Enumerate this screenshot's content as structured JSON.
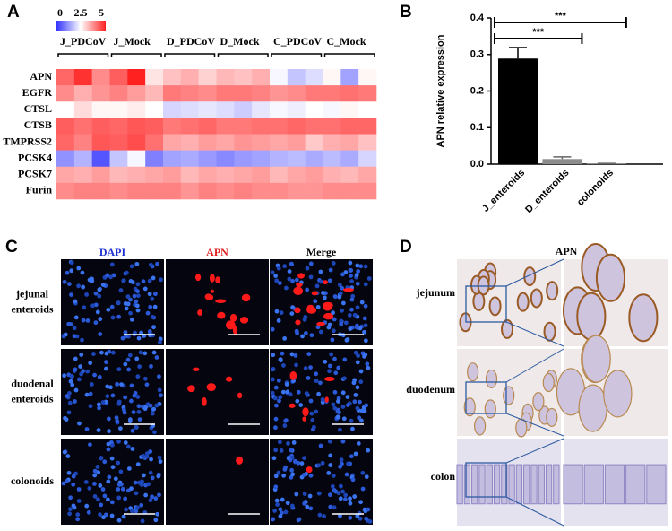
{
  "chart_data": [
    {
      "type": "heatmap",
      "panel": "A",
      "groups": [
        "J_PDCoV",
        "J_Mock",
        "D_PDCoV",
        "D_Mock",
        "C_PDCoV",
        "C_Mock"
      ],
      "rows": [
        "APN",
        "EGFR",
        "CTSL",
        "CTSB",
        "TMPRSS2",
        "PCSK4",
        "PCSK7",
        "Furin"
      ],
      "values": [
        [
          4.2,
          4.8,
          3.8,
          4.3,
          5.0,
          2.8,
          3.2,
          3.4,
          3.0,
          3.3,
          3.2,
          3.4,
          2.4,
          1.8,
          2.1,
          2.6,
          1.4,
          2.6
        ],
        [
          3.8,
          3.4,
          3.7,
          3.9,
          3.6,
          3.3,
          4.0,
          3.9,
          3.8,
          4.0,
          4.0,
          3.9,
          3.7,
          3.8,
          4.0,
          4.0,
          4.1,
          4.0
        ],
        [
          2.5,
          2.9,
          2.6,
          2.6,
          2.7,
          2.5,
          2.0,
          2.1,
          2.2,
          2.1,
          1.9,
          2.2,
          2.4,
          2.3,
          2.5,
          2.4,
          2.6,
          2.5
        ],
        [
          4.3,
          4.1,
          4.3,
          4.2,
          4.4,
          4.3,
          4.0,
          4.1,
          4.2,
          4.0,
          4.0,
          4.1,
          4.1,
          4.2,
          4.1,
          4.1,
          4.2,
          4.2
        ],
        [
          4.2,
          3.9,
          4.4,
          4.3,
          4.5,
          4.1,
          3.5,
          3.4,
          3.6,
          3.5,
          3.7,
          3.6,
          3.5,
          3.6,
          3.1,
          3.4,
          3.5,
          3.2
        ],
        [
          1.2,
          1.6,
          0.5,
          1.8,
          2.4,
          1.0,
          1.4,
          1.5,
          1.3,
          1.1,
          1.3,
          1.4,
          1.6,
          1.7,
          1.5,
          1.7,
          1.5,
          2.0
        ],
        [
          3.5,
          3.4,
          3.6,
          3.3,
          3.4,
          3.5,
          3.6,
          3.3,
          3.5,
          3.4,
          3.5,
          3.6,
          3.3,
          3.5,
          3.6,
          3.4,
          3.3,
          3.5
        ],
        [
          3.8,
          3.9,
          3.9,
          3.8,
          3.9,
          3.9,
          3.9,
          3.7,
          3.9,
          3.8,
          3.9,
          3.8,
          3.8,
          3.7,
          3.7,
          3.8,
          3.8,
          3.8
        ]
      ],
      "clim": [
        0,
        5
      ],
      "colorbar_ticks": [
        0,
        2.5,
        5
      ],
      "colors": [
        "#2b2bff",
        "#ffffff",
        "#ff2020"
      ]
    },
    {
      "type": "bar",
      "panel": "B",
      "categories": [
        "J_enteroids",
        "D_enteroids",
        "colonoids"
      ],
      "values": [
        0.289,
        0.014,
        0.001
      ],
      "errors": [
        0.03,
        0.006,
        0.001
      ],
      "colors": [
        "#000000",
        "#8c8c8c",
        "#c8c8c8"
      ],
      "ylabel": "APN relative expression",
      "ylim": [
        0,
        0.4
      ],
      "yticks": [
        {
          "value": 0,
          "label": "0.0"
        },
        0.1,
        0.2,
        0.3,
        0.4
      ],
      "annotations": [
        {
          "from": 0,
          "to": 2,
          "text": "***"
        },
        {
          "from": 0,
          "to": 1,
          "text": "***"
        }
      ]
    }
  ],
  "panel_c": {
    "panel": "C",
    "columns": [
      "DAPI",
      "APN",
      "Merge"
    ],
    "rows": [
      [
        "jejunal",
        "enteroids"
      ],
      [
        "duodenal",
        "enteroids"
      ],
      [
        "colonoids"
      ]
    ]
  },
  "panel_d": {
    "panel": "D",
    "header": "APN",
    "rows": [
      "jejunum",
      "duodenum",
      "colon"
    ]
  }
}
